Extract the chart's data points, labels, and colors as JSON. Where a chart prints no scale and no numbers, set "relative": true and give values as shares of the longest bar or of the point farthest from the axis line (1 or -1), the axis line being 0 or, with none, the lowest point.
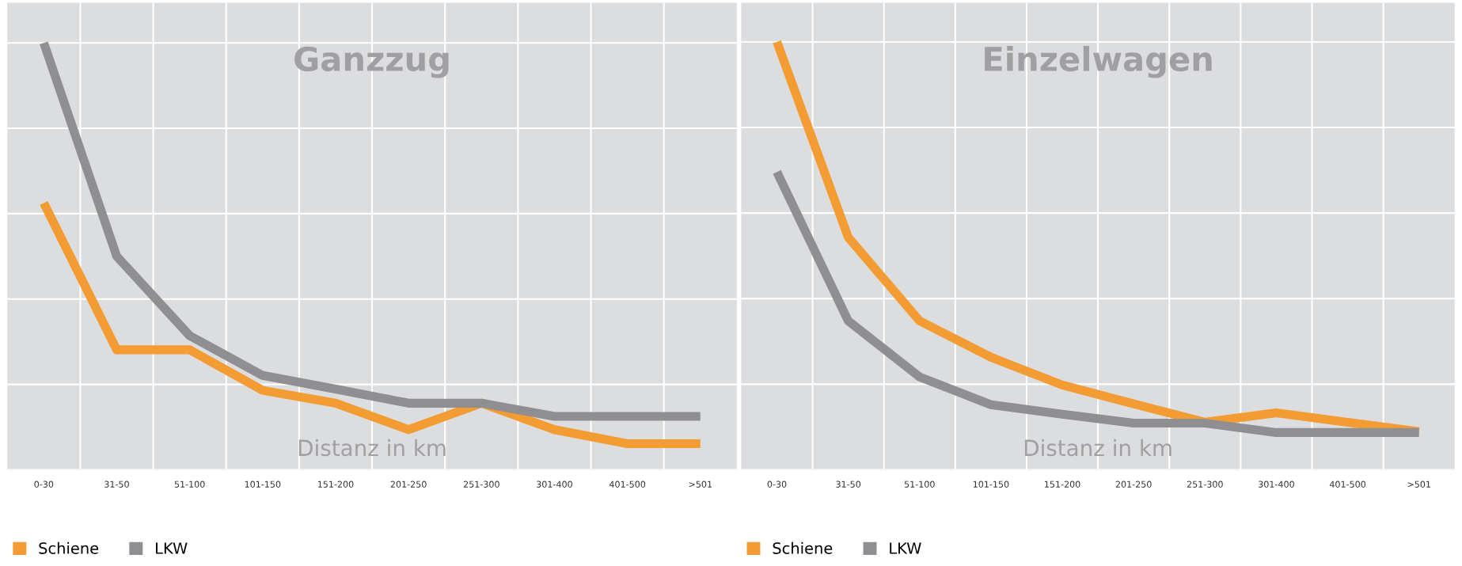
{
  "chart_data": [
    {
      "type": "line",
      "title": "Ganzzug",
      "xlabel": "Distanz in km",
      "relative": true,
      "grid": true,
      "legend": "bottom left",
      "tick_labels": "x",
      "marker": "none",
      "line_style": "solid",
      "categories": [
        "0-30",
        "31-50",
        "51-100",
        "101-150",
        "151-200",
        "201-250",
        "251-300",
        "301-400",
        "401-500",
        ">501"
      ],
      "series": [
        {
          "name": "Schiene",
          "color": "#f39c33",
          "values": [
            0.625,
            0.281,
            0.281,
            0.186,
            0.156,
            0.094,
            0.156,
            0.094,
            0.061,
            0.061
          ]
        },
        {
          "name": "LKW",
          "color": "#8f8f91",
          "values": [
            1,
            0.5,
            0.314,
            0.221,
            0.189,
            0.156,
            0.156,
            0.125,
            0.125,
            0.125
          ]
        }
      ]
    },
    {
      "type": "line",
      "title": "Einzelwagen",
      "xlabel": "Distanz in km",
      "relative": true,
      "grid": true,
      "legend": "bottom left",
      "tick_labels": "x",
      "marker": "none",
      "line_style": "solid",
      "categories": [
        "0-30",
        "31-50",
        "51-100",
        "101-150",
        "151-200",
        "201-250",
        "251-300",
        "301-400",
        "401-500",
        ">501"
      ],
      "series": [
        {
          "name": "Schiene",
          "color": "#f39c33",
          "values": [
            1,
            0.543,
            0.348,
            0.263,
            0.198,
            0.154,
            0.111,
            0.133,
            0.111,
            0.089
          ]
        },
        {
          "name": "LKW",
          "color": "#8f8f91",
          "values": [
            0.696,
            0.348,
            0.217,
            0.152,
            0.13,
            0.109,
            0.109,
            0.087,
            0.087,
            0.087
          ]
        }
      ]
    }
  ]
}
